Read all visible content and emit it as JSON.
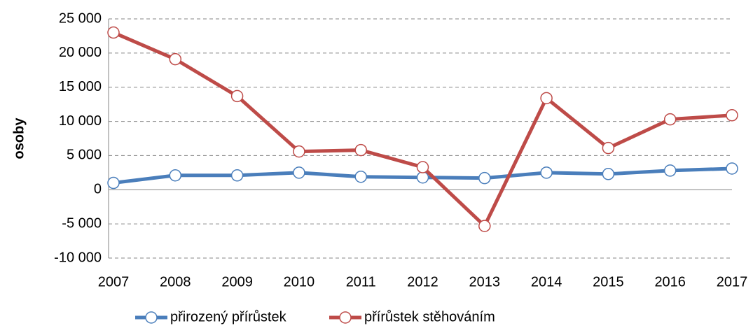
{
  "chart_data": {
    "type": "line",
    "y_label": "osoby",
    "categories": [
      "2007",
      "2008",
      "2009",
      "2010",
      "2011",
      "2012",
      "2013",
      "2014",
      "2015",
      "2016",
      "2017"
    ],
    "series": [
      {
        "name": "přirozený přírůstek",
        "color": "#4a7ebb",
        "values": [
          1000,
          2100,
          2100,
          2500,
          1900,
          1800,
          1700,
          2500,
          2300,
          2800,
          3100
        ]
      },
      {
        "name": "přírůstek stěhováním",
        "color": "#be4b48",
        "values": [
          23000,
          19100,
          13700,
          5600,
          5800,
          3300,
          -5300,
          13400,
          6100,
          10300,
          10900
        ]
      }
    ],
    "ylim": [
      -10000,
      25000
    ],
    "yticks": [
      {
        "value": -10000,
        "label": "-10 000"
      },
      {
        "value": -5000,
        "label": "-5 000"
      },
      0,
      {
        "value": 5000,
        "label": "5 000"
      },
      {
        "value": 10000,
        "label": "10 000"
      },
      {
        "value": 15000,
        "label": "15 000"
      },
      {
        "value": 20000,
        "label": "20 000"
      },
      {
        "value": 25000,
        "label": "25 000"
      }
    ],
    "grid": true,
    "legend": "bottom"
  }
}
